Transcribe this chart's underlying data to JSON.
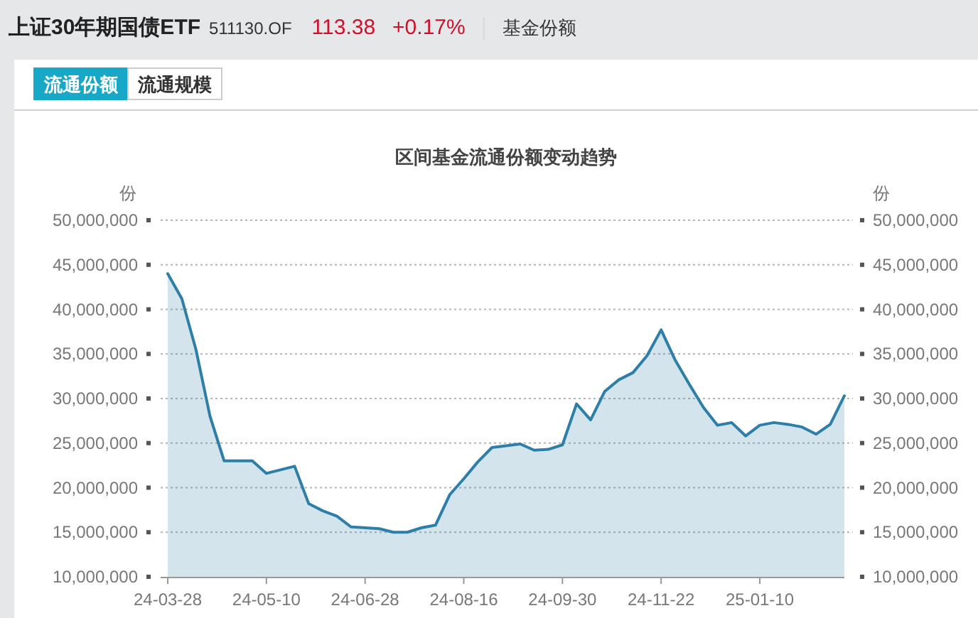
{
  "chart_data": {
    "type": "area",
    "title": "区间基金流通份额变动趋势",
    "ylabel": "份",
    "y2label": "份",
    "annotations": [
      "上证30年期国债ETF",
      "511130.OF",
      "113.38",
      "+0.17%",
      "基金份额",
      "流通份额",
      "流通规模"
    ],
    "categories": [
      "24-03-28",
      null,
      null,
      null,
      null,
      null,
      null,
      "24-05-10",
      null,
      null,
      null,
      null,
      null,
      null,
      "24-06-28",
      null,
      null,
      null,
      null,
      null,
      null,
      "24-08-16",
      null,
      null,
      null,
      null,
      null,
      null,
      "24-09-30",
      null,
      null,
      null,
      null,
      null,
      null,
      "24-11-22",
      null,
      null,
      null,
      null,
      null,
      null,
      "25-01-10",
      null,
      null,
      null,
      null,
      null,
      null
    ],
    "values": [
      44000000,
      41200000,
      35500000,
      28000000,
      23000000,
      23000000,
      23000000,
      21600000,
      22000000,
      22400000,
      18200000,
      17400000,
      16800000,
      15600000,
      15500000,
      15400000,
      15000000,
      15000000,
      15500000,
      15800000,
      19200000,
      21000000,
      22900000,
      24500000,
      24700000,
      24900000,
      24200000,
      24300000,
      24800000,
      29400000,
      27600000,
      30800000,
      32100000,
      32900000,
      34800000,
      37700000,
      34300000,
      31600000,
      29000000,
      27000000,
      27300000,
      25800000,
      27000000,
      27300000,
      27100000,
      26800000,
      26000000,
      27100000,
      30300000
    ],
    "color": "#2e7fa8",
    "ylim": [
      10000000,
      50000000
    ],
    "yticks": [
      {
        "value": 10000000,
        "label": "10,000,000"
      },
      {
        "value": 15000000,
        "label": "15,000,000"
      },
      {
        "value": 20000000,
        "label": "20,000,000"
      },
      {
        "value": 25000000,
        "label": "25,000,000"
      },
      {
        "value": 30000000,
        "label": "30,000,000"
      },
      {
        "value": 35000000,
        "label": "35,000,000"
      },
      {
        "value": 40000000,
        "label": "40,000,000"
      },
      {
        "value": 45000000,
        "label": "45,000,000"
      },
      {
        "value": 50000000,
        "label": "50,000,000"
      }
    ],
    "y2lim": [
      10000000,
      50000000
    ],
    "y2ticks": [
      {
        "value": 10000000,
        "label": "10,000,000"
      },
      {
        "value": 15000000,
        "label": "15,000,000"
      },
      {
        "value": 20000000,
        "label": "20,000,000"
      },
      {
        "value": 25000000,
        "label": "25,000,000"
      },
      {
        "value": 30000000,
        "label": "30,000,000"
      },
      {
        "value": 35000000,
        "label": "35,000,000"
      },
      {
        "value": 40000000,
        "label": "40,000,000"
      },
      {
        "value": 45000000,
        "label": "45,000,000"
      },
      {
        "value": 50000000,
        "label": "50,000,000"
      }
    ],
    "grid": "y",
    "line_style": "solid",
    "marker": "none"
  }
}
